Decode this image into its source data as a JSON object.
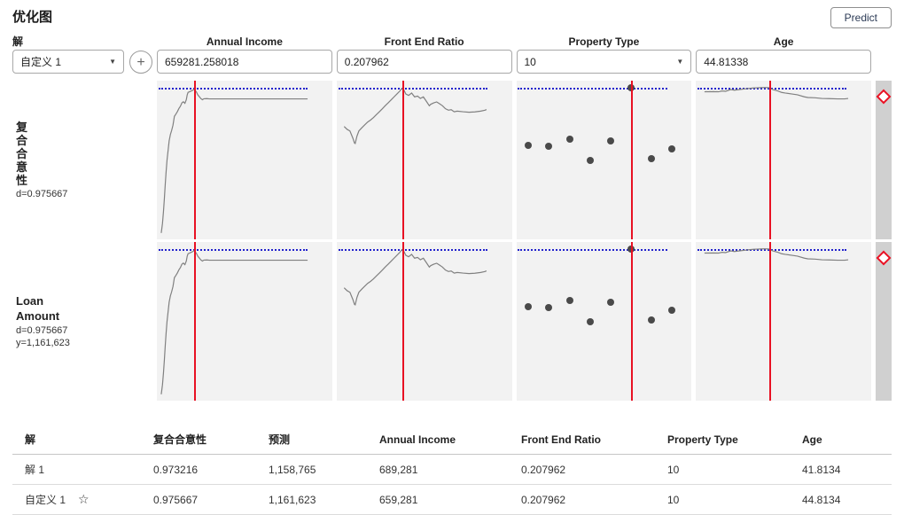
{
  "header": {
    "title": "优化图",
    "predict_label": "Predict"
  },
  "solution": {
    "label": "解",
    "selected": "自定义 1",
    "add_label": "+"
  },
  "factors": [
    {
      "name": "Annual Income",
      "value": "659281.258018",
      "control": "input",
      "red_line_pct": 21.3
    },
    {
      "name": "Front End Ratio",
      "value": "0.207962",
      "control": "input",
      "red_line_pct": 37.7
    },
    {
      "name": "Property Type",
      "value": "10",
      "control": "dropdown",
      "red_line_pct": 65.3
    },
    {
      "name": "Age",
      "value": "44.81338",
      "control": "input",
      "red_line_pct": 41.6
    }
  ],
  "responses": [
    {
      "label": "复合合意性",
      "d": "d=0.975667"
    },
    {
      "label": "Loan Amount",
      "d": "d=0.975667",
      "y": "y=1,161,623"
    }
  ],
  "chart_data": {
    "type": "line",
    "note": "prediction profiler: each cell is response vs factor; identical traces shown for both response rows",
    "desirability_reference": {
      "y_pct": 4.6,
      "x_start_pct": 1,
      "x_end_pct": 86
    },
    "rows": [
      "composite-desirability",
      "loan-amount"
    ],
    "traces": {
      "annual_income": {
        "kind": "line",
        "points": [
          [
            2.5,
            96
          ],
          [
            3.2,
            90
          ],
          [
            3.8,
            82
          ],
          [
            4.3,
            74
          ],
          [
            4.8,
            65
          ],
          [
            5.3,
            57
          ],
          [
            5.8,
            50
          ],
          [
            6.4,
            44
          ],
          [
            7,
            38
          ],
          [
            7.7,
            34
          ],
          [
            8.4,
            31.5
          ],
          [
            9.2,
            28
          ],
          [
            10,
            22.5
          ],
          [
            10.9,
            21
          ],
          [
            11.7,
            19.5
          ],
          [
            12.6,
            17.5
          ],
          [
            13.4,
            16.2
          ],
          [
            14.3,
            14
          ],
          [
            15.1,
            13.3
          ],
          [
            16,
            14.3
          ],
          [
            16.8,
            12
          ],
          [
            17.3,
            9
          ],
          [
            17.8,
            7.4
          ],
          [
            18.6,
            7
          ],
          [
            19.4,
            6.6
          ],
          [
            20.2,
            6.2
          ],
          [
            21.3,
            5.4
          ],
          [
            22.6,
            7.2
          ],
          [
            23.4,
            9
          ],
          [
            24.3,
            10.2
          ],
          [
            25.1,
            11.3
          ],
          [
            26,
            12
          ],
          [
            26.8,
            11.4
          ],
          [
            28.5,
            11.3
          ],
          [
            30,
            11.5
          ],
          [
            86,
            11.5
          ]
        ]
      },
      "front_end_ratio": {
        "kind": "line",
        "points": [
          [
            4.2,
            28.9
          ],
          [
            5.9,
            30.7
          ],
          [
            7.5,
            31.7
          ],
          [
            9.2,
            36.3
          ],
          [
            10.1,
            39.3
          ],
          [
            10.5,
            39.6
          ],
          [
            11.5,
            35
          ],
          [
            12.6,
            31.7
          ],
          [
            14.2,
            29.8
          ],
          [
            15.9,
            27.9
          ],
          [
            17.6,
            26.1
          ],
          [
            19.3,
            24.8
          ],
          [
            20.9,
            23.3
          ],
          [
            22.6,
            21.4
          ],
          [
            24.3,
            19.6
          ],
          [
            26,
            17.7
          ],
          [
            27.6,
            15.8
          ],
          [
            29.3,
            14
          ],
          [
            31,
            12.1
          ],
          [
            32.7,
            10.2
          ],
          [
            34.3,
            8.4
          ],
          [
            36,
            6.5
          ],
          [
            36.9,
            5.2
          ],
          [
            37.7,
            4.6
          ],
          [
            39.4,
            8.4
          ],
          [
            41,
            9.3
          ],
          [
            42.7,
            7.8
          ],
          [
            44.4,
            10.2
          ],
          [
            46.1,
            9.7
          ],
          [
            47.7,
            11.2
          ],
          [
            49.4,
            10.2
          ],
          [
            51.1,
            13
          ],
          [
            52.8,
            15.8
          ],
          [
            53.6,
            14.9
          ],
          [
            55.3,
            14
          ],
          [
            57,
            13.4
          ],
          [
            58.6,
            14.5
          ],
          [
            60.3,
            15.8
          ],
          [
            62,
            17.7
          ],
          [
            63.7,
            18.6
          ],
          [
            65.3,
            18.3
          ],
          [
            67,
            19.6
          ],
          [
            68.7,
            19.2
          ],
          [
            72,
            19.6
          ],
          [
            75.4,
            19.9
          ],
          [
            78.7,
            19.7
          ],
          [
            82.1,
            19.2
          ],
          [
            84.6,
            18.6
          ],
          [
            85.4,
            18.2
          ]
        ]
      },
      "property_type": {
        "kind": "scatter",
        "points": [
          [
            7,
            41
          ],
          [
            18.6,
            41.5
          ],
          [
            30.7,
            37
          ],
          [
            42,
            50
          ],
          [
            53.8,
            38
          ],
          [
            65.3,
            4.6
          ],
          [
            76.9,
            49
          ],
          [
            89,
            43
          ]
        ]
      },
      "age": {
        "kind": "line",
        "points": [
          [
            5,
            7
          ],
          [
            10,
            6.9
          ],
          [
            13,
            7
          ],
          [
            15,
            6.5
          ],
          [
            17,
            6.7
          ],
          [
            20,
            5.6
          ],
          [
            22,
            6
          ],
          [
            25,
            5.6
          ],
          [
            28,
            5.2
          ],
          [
            31,
            4.8
          ],
          [
            33,
            4.6
          ],
          [
            35,
            4.5
          ],
          [
            37,
            4.4
          ],
          [
            39,
            4.3
          ],
          [
            41.6,
            4.4
          ],
          [
            44,
            5.6
          ],
          [
            47,
            6.5
          ],
          [
            49,
            7.4
          ],
          [
            51,
            7.8
          ],
          [
            55,
            8.4
          ],
          [
            58,
            8.9
          ],
          [
            62,
            10.2
          ],
          [
            64,
            10.6
          ],
          [
            68,
            10.8
          ],
          [
            72,
            11.2
          ],
          [
            76,
            11.3
          ],
          [
            81,
            11.5
          ],
          [
            85,
            11.5
          ],
          [
            87,
            11.2
          ]
        ]
      }
    }
  },
  "table": {
    "headers": [
      "解",
      "复合合意性",
      "预测",
      "Annual Income",
      "Front End Ratio",
      "Property Type",
      "Age"
    ],
    "rows": [
      {
        "cells": [
          "解 1",
          "0.973216",
          "1,158,765",
          "689,281",
          "0.207962",
          "10",
          "41.8134"
        ],
        "starred": false
      },
      {
        "cells": [
          "自定义 1",
          "0.975667",
          "1,161,623",
          "659,281",
          "0.207962",
          "10",
          "44.8134"
        ],
        "starred": true
      }
    ],
    "star_glyph": "☆"
  },
  "icons": {
    "dropdown_caret": "▼"
  },
  "colors": {
    "red": "#e81123",
    "blue": "#2222cc",
    "trace": "#808080",
    "dot": "#4a4a4a",
    "plot_bg": "#f2f2f2",
    "strip": "#d0d0d0"
  }
}
